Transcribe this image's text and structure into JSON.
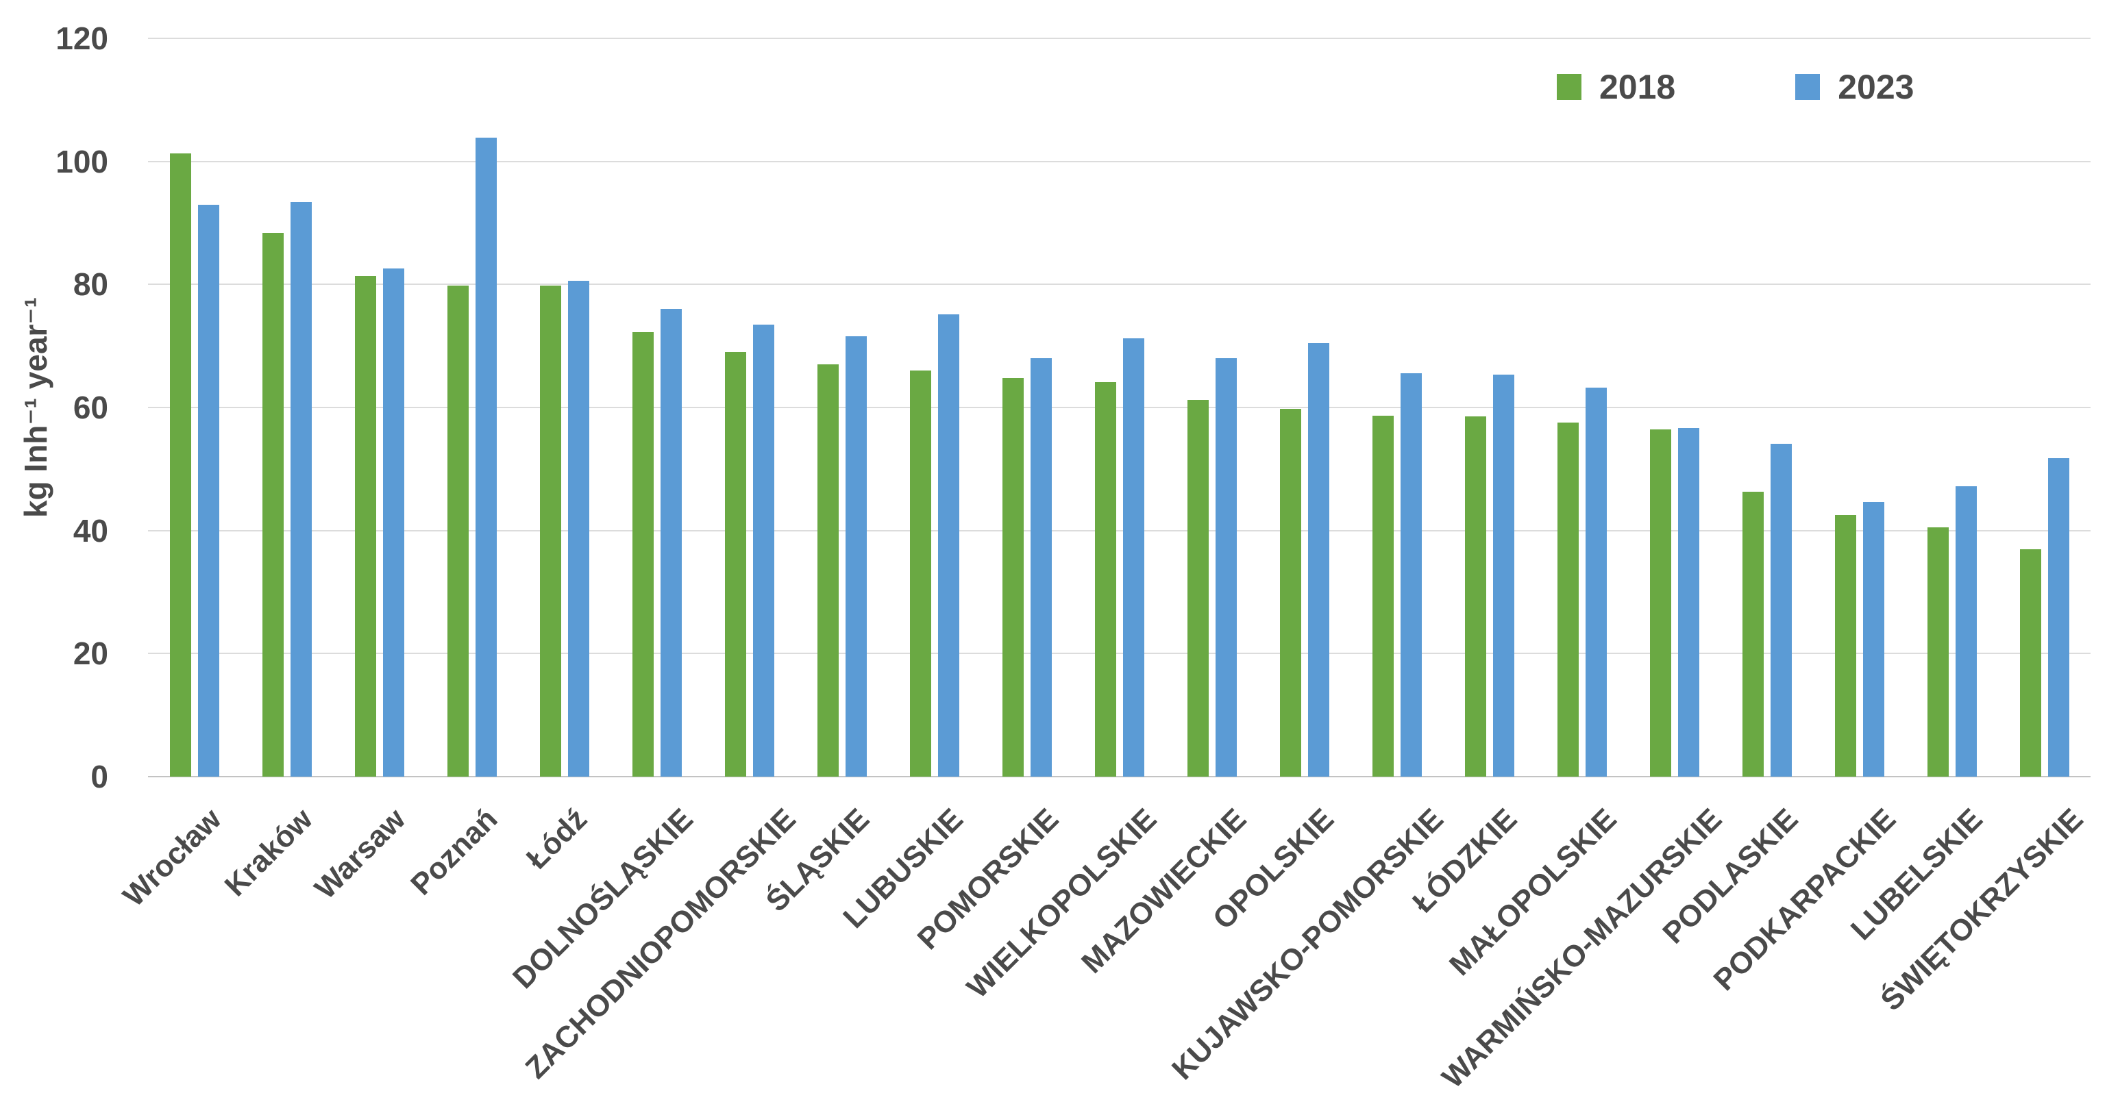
{
  "colors": {
    "series_2018": "#6aa943",
    "series_2023": "#5b9bd5",
    "grid": "#dcdcdc",
    "baseline": "#c3c3c3",
    "text": "#4a4a4a",
    "background": "#ffffff"
  },
  "legend": {
    "items": [
      "2018",
      "2023"
    ]
  },
  "chart_data": {
    "type": "bar",
    "title": "",
    "xlabel": "",
    "ylabel": "kg Inh⁻¹ year⁻¹",
    "ylim": [
      0,
      120
    ],
    "yticks": [
      0,
      20,
      40,
      60,
      80,
      100,
      120
    ],
    "grid": true,
    "legend_position": "top-right",
    "categories": [
      "Wrocław",
      "Kraków",
      "Warsaw",
      "Poznań",
      "Łódź",
      "DOLNOŚLĄSKIE",
      "ZACHODNIOPOMORSKIE",
      "ŚLĄSKIE",
      "LUBUSKIE",
      "POMORSKIE",
      "WIELKOPOLSKIE",
      "MAZOWIECKIE",
      "OPOLSKIE",
      "KUJAWSKO-POMORSKIE",
      "ŁÓDZKIE",
      "MAŁOPOLSKIE",
      "WARMIŃSKO-MAZURSKIE",
      "PODLASKIE",
      "PODKARPACKIE",
      "LUBELSKIE",
      "ŚWIĘTOKRZYSKIE"
    ],
    "series": [
      {
        "name": "2018",
        "color": "#6aa943",
        "values": [
          101.3,
          88.4,
          81.4,
          79.8,
          79.8,
          72.2,
          69.0,
          67.0,
          66.0,
          64.8,
          64.1,
          61.2,
          59.8,
          58.7,
          58.6,
          57.6,
          56.4,
          46.3,
          42.5,
          40.5,
          37.0
        ]
      },
      {
        "name": "2023",
        "color": "#5b9bd5",
        "values": [
          92.9,
          93.4,
          82.6,
          103.9,
          80.6,
          76.0,
          73.5,
          71.6,
          75.1,
          68.0,
          71.3,
          68.0,
          70.5,
          65.6,
          65.4,
          63.2,
          56.7,
          54.1,
          44.6,
          47.2,
          51.8
        ]
      }
    ]
  }
}
